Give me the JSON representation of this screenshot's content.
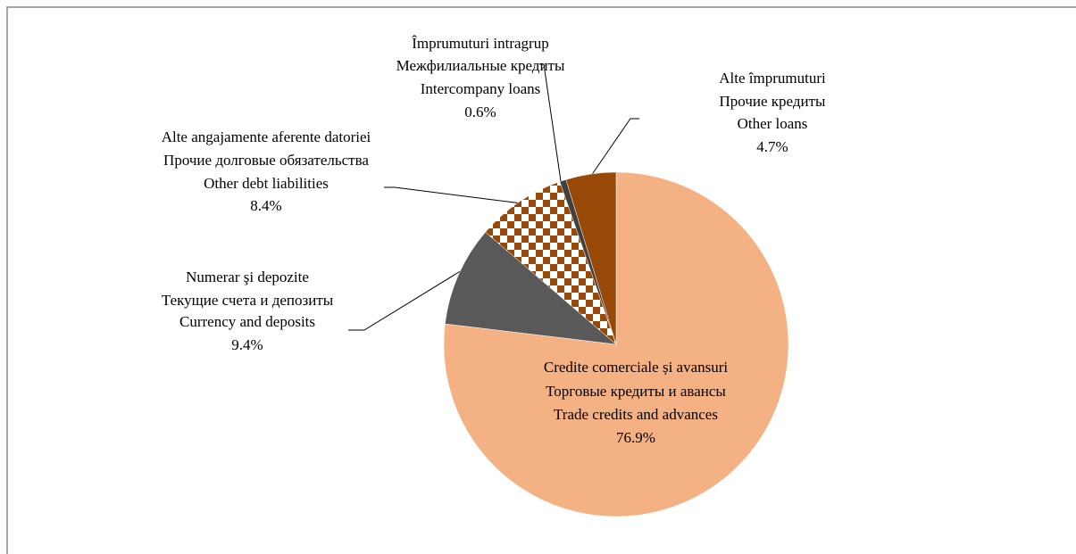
{
  "chart_data": {
    "type": "pie",
    "categories": [
      [
        "Credite comerciale și avansuri",
        "Торговые кредиты и авансы",
        "Trade credits and advances"
      ],
      [
        "Numerar şi depozite",
        "Текущие счета и депозиты",
        "Currency and deposits"
      ],
      [
        "Alte angajamente aferente datoriei",
        "Прочие долговые обязательства",
        "Other debt liabilities"
      ],
      [
        "Împrumuturi intragrup",
        "Межфилиальные кредиты",
        "Intercompany loans"
      ],
      [
        "Alte împrumuturi",
        "Прочие кредиты",
        "Other loans"
      ]
    ],
    "values": [
      76.9,
      9.4,
      8.4,
      0.6,
      4.7
    ],
    "value_labels": [
      "76.9%",
      "9.4%",
      "8.4%",
      "0.6%",
      "4.7%"
    ],
    "colors": [
      "#f4b183",
      "#595959",
      "checker",
      "#404040",
      "#984807"
    ]
  }
}
